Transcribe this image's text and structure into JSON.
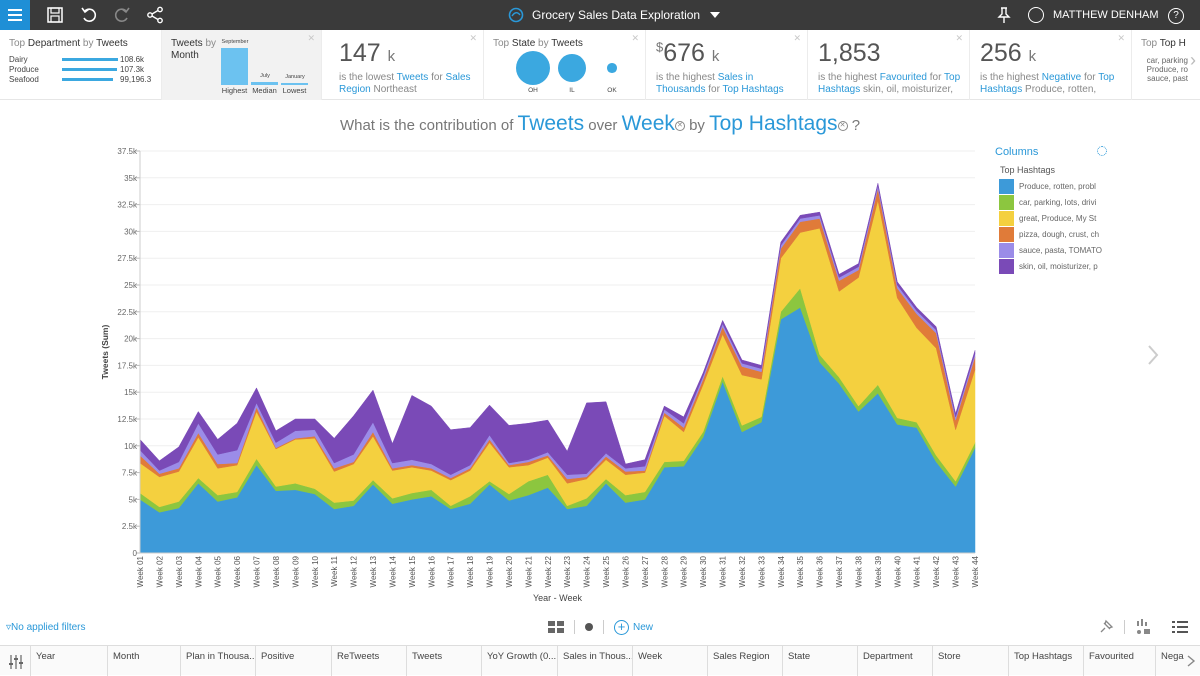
{
  "app": {
    "title": "Grocery Sales Data Exploration",
    "user": "MATTHEW DENHAM",
    "help": "?"
  },
  "cards": {
    "dept": {
      "title_a": "Top ",
      "title_b": "Department",
      "title_c": " by ",
      "title_d": "Tweets",
      "rows": [
        {
          "label": "Dairy",
          "value": "108.6k",
          "pct": 1.0
        },
        {
          "label": "Produce",
          "value": "107.3k",
          "pct": 0.988
        },
        {
          "label": "Seafood",
          "value": "99,196.3",
          "pct": 0.913
        }
      ]
    },
    "month": {
      "title_a": "Tweets",
      "title_b": " by ",
      "title_c": "Month",
      "bars": [
        {
          "name": "September",
          "level": 1.0
        },
        {
          "name": "July",
          "level": 0.08
        },
        {
          "name": "January",
          "level": 0.05
        }
      ],
      "labels": [
        "Highest",
        "Median",
        "Lowest"
      ]
    },
    "kpi1": {
      "num": "147",
      "unit": "k",
      "pre": "is the lowest ",
      "m1": "Tweets",
      "mid": " for ",
      "m2": "Sales Region",
      "tail": " Northeast"
    },
    "state": {
      "title_a": "Top ",
      "title_b": "State",
      "title_c": " by ",
      "title_d": "Tweets",
      "bubbles": [
        {
          "label": "OH",
          "size": 1.0
        },
        {
          "label": "IL",
          "size": 0.82
        },
        {
          "label": "OK",
          "size": 0.28
        }
      ]
    },
    "kpi2": {
      "currency": "$",
      "num": "676",
      "unit": "k",
      "pre": "is the highest ",
      "m1": "Sales in Thousands",
      "mid": " for ",
      "m2": "Top Hashtags",
      "tail": ""
    },
    "kpi3": {
      "num": "1,853",
      "unit": "",
      "pre": "is the highest ",
      "m1": "Favourited",
      "mid": " for ",
      "m2": "Top Hashtags",
      "tail": " skin, oil, moisturizer,"
    },
    "kpi4": {
      "num": "256",
      "unit": "k",
      "pre": "is the highest ",
      "m1": "Negative",
      "mid": " for ",
      "m2": "Top Hashtags",
      "tail": " Produce, rotten,"
    },
    "top": {
      "title_a": "Top ",
      "title_b": "Top H",
      "lines": [
        "car, parking",
        "Produce, ro",
        "sauce, past"
      ]
    }
  },
  "question": {
    "q1": "What is the contribution of",
    "measure": "Tweets",
    "q2": "over",
    "dim1": "Week",
    "q3": "by",
    "dim2": "Top Hashtags",
    "q4": "?"
  },
  "legend": {
    "header": "Columns",
    "subheader": "Top Hashtags"
  },
  "chart_data": {
    "type": "area",
    "stacked": true,
    "xlabel": "Year - Week",
    "ylabel": "Tweets (Sum)",
    "ylim": [
      0,
      37500
    ],
    "yticks": [
      0,
      2500,
      5000,
      7500,
      10000,
      12500,
      15000,
      17500,
      20000,
      22500,
      25000,
      27500,
      30000,
      32500,
      35000,
      37500
    ],
    "ytick_labels": [
      "0",
      "2.5k",
      "5k",
      "7.5k",
      "10k",
      "12.5k",
      "15k",
      "17.5k",
      "20k",
      "22.5k",
      "25k",
      "27.5k",
      "30k",
      "32.5k",
      "35k",
      "37.5k"
    ],
    "x": [
      "Week 01",
      "Week 02",
      "Week 03",
      "Week 04",
      "Week 05",
      "Week 06",
      "Week 07",
      "Week 08",
      "Week 09",
      "Week 10",
      "Week 11",
      "Week 12",
      "Week 13",
      "Week 14",
      "Week 15",
      "Week 16",
      "Week 17",
      "Week 18",
      "Week 19",
      "Week 20",
      "Week 21",
      "Week 22",
      "Week 23",
      "Week 24",
      "Week 25",
      "Week 26",
      "Week 27",
      "Week 28",
      "Week 29",
      "Week 30",
      "Week 31",
      "Week 32",
      "Week 33",
      "Week 34",
      "Week 35",
      "Week 36",
      "Week 37",
      "Week 38",
      "Week 39",
      "Week 40",
      "Week 41",
      "Week 42",
      "Week 43",
      "Week 44"
    ],
    "series": [
      {
        "name": "Produce, rotten, probl",
        "color": "#3d9ad9",
        "values": [
          5000,
          3800,
          4200,
          6500,
          4800,
          5200,
          8200,
          5800,
          5900,
          5500,
          4100,
          4400,
          6400,
          4600,
          5000,
          5300,
          4100,
          4600,
          6400,
          4900,
          5400,
          6100,
          4100,
          4400,
          6500,
          4700,
          5000,
          8000,
          8100,
          10800,
          16000,
          11300,
          12200,
          21800,
          22900,
          17800,
          15800,
          13200,
          14900,
          12000,
          11700,
          8500,
          6200,
          9800
        ]
      },
      {
        "name": "car, parking, lots, drivi",
        "color": "#8cc63f",
        "values": [
          600,
          500,
          600,
          500,
          600,
          500,
          600,
          400,
          600,
          500,
          600,
          500,
          400,
          500,
          600,
          600,
          300,
          700,
          300,
          600,
          1300,
          1200,
          300,
          700,
          400,
          700,
          700,
          500,
          500,
          500,
          500,
          600,
          500,
          700,
          1800,
          700,
          600,
          500,
          800,
          600,
          500,
          600,
          500,
          500
        ]
      },
      {
        "name": "great, Produce, My St",
        "color": "#f4d03f",
        "values": [
          2800,
          2800,
          2800,
          3800,
          2500,
          2500,
          4400,
          3500,
          4100,
          4700,
          2900,
          3400,
          4100,
          2600,
          2400,
          1800,
          2400,
          2400,
          3600,
          2500,
          1500,
          1600,
          2100,
          1800,
          1800,
          1900,
          1800,
          4300,
          2700,
          4400,
          3900,
          4700,
          3500,
          5000,
          5200,
          11800,
          8000,
          12000,
          17200,
          11200,
          8800,
          10000,
          4800,
          6800
        ]
      },
      {
        "name": "pizza, dough, crust, ch",
        "color": "#e07b39",
        "values": [
          700,
          300,
          300,
          400,
          400,
          200,
          400,
          100,
          100,
          200,
          300,
          200,
          400,
          200,
          200,
          200,
          200,
          200,
          300,
          200,
          300,
          200,
          400,
          200,
          300,
          300,
          200,
          300,
          400,
          500,
          700,
          800,
          700,
          900,
          1000,
          900,
          1000,
          700,
          1100,
          900,
          1300,
          1400,
          900,
          1200
        ]
      },
      {
        "name": "sauce, pasta, TOMATO",
        "color": "#9b8ce8",
        "values": [
          500,
          300,
          600,
          900,
          900,
          1200,
          400,
          500,
          700,
          600,
          500,
          700,
          900,
          500,
          500,
          400,
          300,
          300,
          400,
          200,
          200,
          300,
          400,
          300,
          300,
          300,
          400,
          300,
          400,
          300,
          300,
          300,
          300,
          300,
          300,
          300,
          300,
          300,
          300,
          300,
          300,
          300,
          300,
          300
        ]
      },
      {
        "name": "skin, oil, moisturizer, p",
        "color": "#7a4ab7",
        "values": [
          1000,
          900,
          1400,
          1100,
          1400,
          2500,
          1400,
          1100,
          1100,
          1000,
          2300,
          3600,
          3000,
          1800,
          6000,
          5400,
          4200,
          3500,
          2800,
          3500,
          3400,
          3000,
          2200,
          6600,
          4800,
          400,
          600,
          300,
          600,
          300,
          300,
          300,
          300,
          300,
          300,
          300,
          300,
          300,
          200,
          300,
          300,
          300,
          300,
          300
        ]
      }
    ]
  },
  "filters": {
    "label": "No applied filters"
  },
  "toolbar": {
    "new_label": "New"
  },
  "fields": [
    "Year",
    "Month",
    "Plan in Thousa...",
    "Positive",
    "ReTweets",
    "Tweets",
    "YoY Growth (0...",
    "Sales in Thous...",
    "Week",
    "Sales Region",
    "State",
    "Department",
    "Store",
    "Top Hashtags",
    "Favourited",
    "Nega"
  ]
}
